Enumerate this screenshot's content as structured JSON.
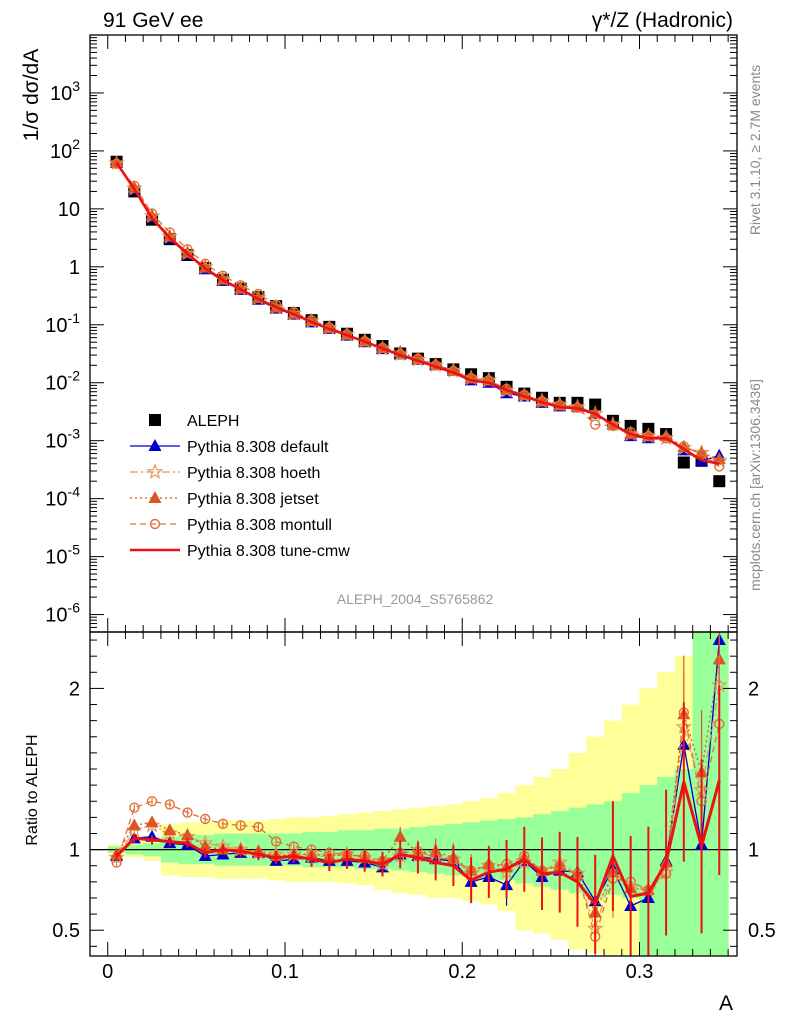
{
  "header": {
    "left": "91 GeV ee",
    "right": "γ*/Z (Hadronic)"
  },
  "side_labels": {
    "rivet": "Rivet 3.1.10, ≥ 2.7M events",
    "mcplots": "mcplots.cern.ch [arXiv:1306.3436]"
  },
  "analysis_id": "ALEPH_2004_S5765862",
  "chart_data": [
    {
      "type": "scatter",
      "panel": "main",
      "ylabel": "1/σ  dσ/dA",
      "yscale": "log",
      "ylim": [
        5e-07,
        10000.0
      ],
      "xlim": [
        -0.01,
        0.355
      ],
      "ytick_labels": [
        "10^-6",
        "10^-5",
        "10^-4",
        "10^-3",
        "10^-2",
        "10^-1",
        "1",
        "10",
        "10^2",
        "10^3"
      ],
      "x": [
        0.005,
        0.015,
        0.025,
        0.035,
        0.045,
        0.055,
        0.065,
        0.075,
        0.085,
        0.095,
        0.105,
        0.115,
        0.125,
        0.135,
        0.145,
        0.155,
        0.165,
        0.175,
        0.185,
        0.195,
        0.205,
        0.215,
        0.225,
        0.235,
        0.245,
        0.255,
        0.265,
        0.275,
        0.285,
        0.295,
        0.305,
        0.315,
        0.325,
        0.335,
        0.345
      ],
      "legend": {
        "placement": "middle-left",
        "entries": [
          "ALEPH",
          "Pythia 8.308 default",
          "Pythia 8.308 hoeth",
          "Pythia 8.308 jetset",
          "Pythia 8.308 montull",
          "Pythia 8.308 tune-cmw"
        ]
      },
      "series": [
        {
          "name": "ALEPH",
          "color": "#000000",
          "marker": "square",
          "values": [
            65,
            20,
            6.5,
            3.0,
            1.6,
            0.95,
            0.6,
            0.42,
            0.3,
            0.21,
            0.16,
            0.12,
            0.092,
            0.07,
            0.055,
            0.043,
            0.032,
            0.026,
            0.021,
            0.017,
            0.014,
            0.012,
            0.0085,
            0.0065,
            0.0055,
            0.0045,
            0.0045,
            0.0042,
            0.0022,
            0.0018,
            0.0016,
            0.0013,
            0.00042,
            0.00045,
            0.0002
          ]
        },
        {
          "name": "Pythia 8.308 default",
          "color": "#0000cc",
          "marker": "triangle",
          "values": [
            62,
            21.5,
            7.1,
            3.1,
            1.65,
            0.91,
            0.57,
            0.4,
            0.27,
            0.19,
            0.15,
            0.11,
            0.085,
            0.065,
            0.05,
            0.038,
            0.031,
            0.025,
            0.02,
            0.016,
            0.011,
            0.01,
            0.0066,
            0.0058,
            0.0045,
            0.0039,
            0.0039,
            0.0029,
            0.0019,
            0.0012,
            0.0011,
            0.0012,
            0.00068,
            0.00045,
            0.00055
          ]
        },
        {
          "name": "Pythia 8.308 hoeth",
          "color": "#e39b5e",
          "marker": "star",
          "values": [
            61,
            22.5,
            7.5,
            3.3,
            1.72,
            0.99,
            0.61,
            0.42,
            0.29,
            0.2,
            0.155,
            0.115,
            0.088,
            0.068,
            0.052,
            0.039,
            0.031,
            0.025,
            0.02,
            0.016,
            0.012,
            0.011,
            0.0073,
            0.006,
            0.0048,
            0.0042,
            0.0038,
            0.0029,
            0.0019,
            0.0013,
            0.0012,
            0.0011,
            0.00075,
            0.00062,
            0.00045
          ]
        },
        {
          "name": "Pythia 8.308 jetset",
          "color": "#dd5522",
          "marker": "triangle",
          "values": [
            63,
            23,
            7.6,
            3.35,
            1.75,
            0.97,
            0.6,
            0.42,
            0.29,
            0.2,
            0.155,
            0.116,
            0.088,
            0.068,
            0.052,
            0.04,
            0.034,
            0.026,
            0.021,
            0.016,
            0.012,
            0.011,
            0.0076,
            0.0062,
            0.0048,
            0.0041,
            0.0038,
            0.003,
            0.0019,
            0.0013,
            0.0012,
            0.0012,
            0.00078,
            0.00062,
            0.00048
          ]
        },
        {
          "name": "Pythia 8.308 montull",
          "color": "#e0703a",
          "marker": "open-circle",
          "dashed": true,
          "values": [
            60,
            25,
            8.3,
            3.9,
            2.0,
            1.13,
            0.7,
            0.48,
            0.34,
            0.22,
            0.165,
            0.12,
            0.09,
            0.068,
            0.052,
            0.04,
            0.031,
            0.026,
            0.02,
            0.016,
            0.012,
            0.011,
            0.0078,
            0.0062,
            0.0048,
            0.0041,
            0.0037,
            0.0019,
            0.0018,
            0.0014,
            0.0012,
            0.0011,
            0.0008,
            0.00058,
            0.00036
          ]
        },
        {
          "name": "Pythia 8.308 tune-cmw",
          "color": "#ee1111",
          "marker": "none",
          "values": [
            62,
            22,
            6.9,
            3.15,
            1.67,
            0.94,
            0.59,
            0.41,
            0.28,
            0.2,
            0.152,
            0.112,
            0.085,
            0.066,
            0.051,
            0.039,
            0.03,
            0.024,
            0.019,
            0.015,
            0.011,
            0.01,
            0.0075,
            0.0058,
            0.0046,
            0.0038,
            0.0036,
            0.0029,
            0.0019,
            0.0013,
            0.0011,
            0.0011,
            0.00072,
            0.00046,
            0.0004
          ]
        }
      ]
    },
    {
      "type": "line",
      "panel": "ratio",
      "ylabel": "Ratio to ALEPH",
      "ylim": [
        0.34,
        2.35
      ],
      "yticks": [
        0.5,
        1,
        2
      ],
      "ytick_labels": [
        "0.5",
        "1",
        "2"
      ],
      "xlabel": "A",
      "xticks": [
        0,
        0.1,
        0.2,
        0.3
      ],
      "xtick_labels": [
        "0",
        "0.1",
        "0.2",
        "0.3"
      ],
      "x": [
        0.005,
        0.015,
        0.025,
        0.035,
        0.045,
        0.055,
        0.065,
        0.075,
        0.085,
        0.095,
        0.105,
        0.115,
        0.125,
        0.135,
        0.145,
        0.155,
        0.165,
        0.175,
        0.185,
        0.195,
        0.205,
        0.215,
        0.225,
        0.235,
        0.245,
        0.255,
        0.265,
        0.275,
        0.285,
        0.295,
        0.305,
        0.315,
        0.325,
        0.335,
        0.345
      ],
      "reference_band_yellow": {
        "lo": [
          0.97,
          0.95,
          0.93,
          0.84,
          0.83,
          0.83,
          0.82,
          0.82,
          0.82,
          0.81,
          0.8,
          0.8,
          0.8,
          0.79,
          0.78,
          0.75,
          0.73,
          0.72,
          0.7,
          0.7,
          0.68,
          0.66,
          0.62,
          0.5,
          0.48,
          0.44,
          0.38,
          0.36,
          0.2,
          0.3,
          0.2,
          0.2,
          0.2,
          0.2,
          0.2
        ],
        "hi": [
          1.03,
          1.05,
          1.08,
          1.16,
          1.17,
          1.17,
          1.18,
          1.18,
          1.18,
          1.19,
          1.2,
          1.2,
          1.21,
          1.22,
          1.23,
          1.24,
          1.25,
          1.26,
          1.27,
          1.28,
          1.3,
          1.32,
          1.35,
          1.4,
          1.45,
          1.5,
          1.6,
          1.7,
          1.8,
          1.9,
          2.0,
          2.1,
          2.2,
          2.3,
          2.4
        ]
      },
      "reference_band_green": {
        "lo": [
          0.98,
          0.97,
          0.96,
          0.92,
          0.91,
          0.91,
          0.9,
          0.9,
          0.9,
          0.9,
          0.9,
          0.89,
          0.89,
          0.89,
          0.88,
          0.88,
          0.87,
          0.86,
          0.85,
          0.84,
          0.83,
          0.82,
          0.81,
          0.79,
          0.77,
          0.75,
          0.73,
          0.7,
          0.72,
          0.7,
          0.2,
          0.2,
          0.2,
          0.2,
          0.2
        ],
        "hi": [
          1.02,
          1.03,
          1.04,
          1.08,
          1.09,
          1.09,
          1.1,
          1.1,
          1.1,
          1.1,
          1.1,
          1.11,
          1.11,
          1.12,
          1.12,
          1.13,
          1.13,
          1.14,
          1.15,
          1.16,
          1.17,
          1.18,
          1.19,
          1.2,
          1.22,
          1.24,
          1.26,
          1.28,
          1.3,
          1.35,
          1.4,
          1.45,
          1.5,
          2.4,
          2.4
        ]
      },
      "series": [
        {
          "name": "Pythia 8.308 default",
          "color": "#0000cc",
          "values": [
            0.96,
            1.07,
            1.08,
            1.04,
            1.03,
            0.96,
            0.97,
            0.98,
            0.98,
            0.93,
            0.94,
            0.95,
            0.93,
            0.93,
            0.92,
            0.89,
            0.97,
            0.96,
            0.94,
            0.93,
            0.8,
            0.83,
            0.78,
            0.93,
            0.83,
            0.87,
            0.86,
            0.68,
            0.88,
            0.65,
            0.7,
            0.93,
            1.65,
            1.03,
            2.3
          ]
        },
        {
          "name": "Pythia 8.308 hoeth",
          "color": "#e39b5e",
          "values": [
            0.95,
            1.12,
            1.15,
            1.1,
            1.08,
            1.04,
            1.02,
            1.0,
            0.98,
            0.97,
            0.97,
            0.96,
            0.96,
            0.97,
            0.95,
            0.91,
            0.96,
            0.96,
            0.95,
            0.94,
            0.85,
            0.9,
            0.86,
            0.92,
            0.87,
            0.92,
            0.85,
            0.51,
            0.86,
            0.77,
            0.75,
            0.86,
            1.76,
            1.37,
            2.02
          ]
        },
        {
          "name": "Pythia 8.308 jetset",
          "color": "#dd5522",
          "values": [
            0.97,
            1.15,
            1.17,
            1.12,
            1.09,
            1.02,
            1.0,
            1.0,
            0.99,
            0.96,
            0.97,
            0.97,
            0.96,
            0.97,
            0.95,
            0.93,
            1.08,
            0.98,
            0.99,
            0.95,
            0.87,
            0.91,
            0.89,
            0.95,
            0.87,
            0.9,
            0.84,
            0.61,
            0.86,
            0.76,
            0.75,
            0.92,
            1.84,
            1.48,
            2.18
          ]
        },
        {
          "name": "Pythia 8.308 montull",
          "color": "#e0703a",
          "dashed": true,
          "values": [
            0.92,
            1.26,
            1.3,
            1.28,
            1.23,
            1.19,
            1.16,
            1.15,
            1.14,
            1.05,
            1.02,
            1.0,
            0.98,
            0.97,
            0.96,
            0.93,
            0.98,
            0.99,
            0.95,
            0.94,
            0.87,
            0.9,
            0.91,
            0.96,
            0.87,
            0.9,
            0.85,
            0.46,
            0.82,
            0.8,
            0.75,
            0.85,
            1.85,
            1.3,
            1.78
          ]
        },
        {
          "name": "Pythia 8.308 tune-cmw",
          "color": "#ee1111",
          "values": [
            0.96,
            1.07,
            1.06,
            1.05,
            1.04,
            0.98,
            1.0,
            0.99,
            0.97,
            0.95,
            0.96,
            0.94,
            0.92,
            0.94,
            0.93,
            0.91,
            0.97,
            0.95,
            0.92,
            0.9,
            0.81,
            0.86,
            0.88,
            0.94,
            0.85,
            0.86,
            0.8,
            0.66,
            0.96,
            0.71,
            0.73,
            0.92,
            1.42,
            1.02,
            1.43
          ]
        }
      ]
    }
  ]
}
